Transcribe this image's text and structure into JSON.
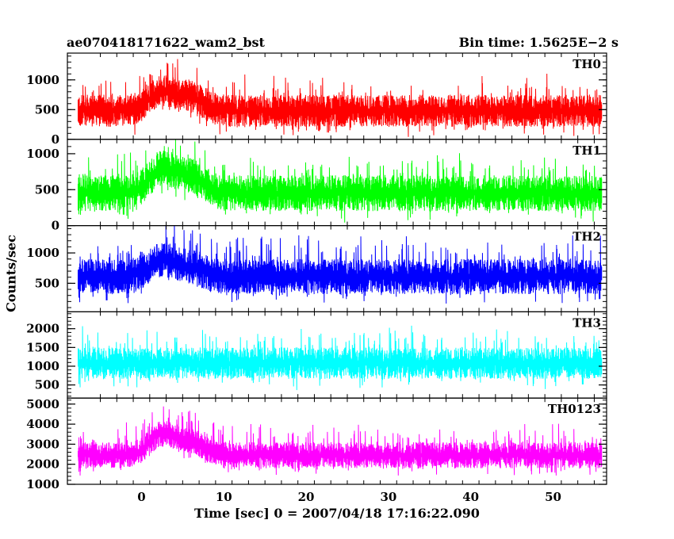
{
  "header": {
    "title": "ae070418171622_wam2_bst",
    "bin_time": "Bin time: 1.5625E−2 s"
  },
  "axes": {
    "xlabel": "Time [sec] 0 = 2007/04/18 17:16:22.090",
    "ylabel": "Counts/sec"
  },
  "chart_data": {
    "type": "line",
    "title": "ae070418171622_wam2_bst",
    "subtitle": "Bin time: 1.5625E−2 s",
    "xlabel": "Time [sec] 0 = 2007/04/18 17:16:22.090",
    "ylabel": "Counts/sec",
    "xlim": [
      -9,
      56.5
    ],
    "x_ticks": [
      0,
      10,
      20,
      30,
      40,
      50
    ],
    "x_range": [
      -7.7,
      55.9
    ],
    "bin_time": 0.015625,
    "grid": false,
    "panels": [
      {
        "name": "TH0",
        "color": "#ff0000",
        "ylim": [
          0,
          1450
        ],
        "yticks": [
          0,
          500,
          1000
        ],
        "base": 480,
        "amp": 270,
        "spike": 380,
        "min": 40,
        "burst": [
          {
            "t": 2.5,
            "level": 800
          },
          {
            "t": 6,
            "level": 700
          }
        ]
      },
      {
        "name": "TH1",
        "color": "#00ff00",
        "ylim": [
          0,
          1200
        ],
        "yticks": [
          0,
          500,
          1000
        ],
        "base": 450,
        "amp": 250,
        "spike": 330,
        "min": 40,
        "burst": [
          {
            "t": 2.5,
            "level": 780
          },
          {
            "t": 6,
            "level": 680
          }
        ]
      },
      {
        "name": "TH2",
        "color": "#0000ff",
        "ylim": [
          30,
          1450
        ],
        "yticks": [
          500,
          1000
        ],
        "base": 610,
        "amp": 290,
        "spike": 430,
        "min": 60,
        "burst": [
          {
            "t": 2.5,
            "level": 880
          },
          {
            "t": 6,
            "level": 760
          }
        ]
      },
      {
        "name": "TH3",
        "color": "#00ffff",
        "ylim": [
          150,
          2450
        ],
        "yticks": [
          500,
          1000,
          1500,
          2000
        ],
        "base": 1080,
        "amp": 420,
        "spike": 620,
        "min": 250,
        "burst": []
      },
      {
        "name": "TH0123",
        "color": "#ff00ff",
        "ylim": [
          1000,
          5300
        ],
        "yticks": [
          1000,
          2000,
          3000,
          4000,
          5000
        ],
        "base": 2450,
        "amp": 650,
        "spike": 1000,
        "min": 1150,
        "burst": [
          {
            "t": 2.5,
            "level": 3500
          },
          {
            "t": 6,
            "level": 3100
          }
        ]
      }
    ]
  }
}
